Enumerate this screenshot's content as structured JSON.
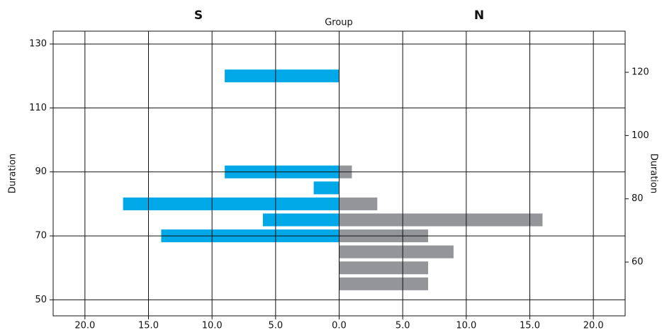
{
  "chart_data": {
    "type": "pyramid",
    "title": "Group",
    "y_label": "Duration",
    "y2_label": "Duration",
    "categories": [
      55,
      60,
      65,
      70,
      75,
      80,
      85,
      90,
      95,
      100,
      105,
      110,
      115,
      120
    ],
    "series": [
      {
        "name": "S",
        "color": "#00a8e8",
        "side": "left",
        "values": [
          0,
          0,
          0,
          14,
          6,
          17,
          2,
          9,
          0,
          0,
          0,
          0,
          0,
          9
        ]
      },
      {
        "name": "N",
        "color": "#939598",
        "side": "right",
        "values": [
          7,
          7,
          9,
          7,
          16,
          3,
          0,
          1,
          0,
          0,
          0,
          0,
          0,
          0
        ]
      }
    ],
    "xlim": [
      0,
      22.5
    ],
    "xticks": [
      {
        "value": 0,
        "label": "0.0"
      },
      {
        "value": 5,
        "label": "5.0"
      },
      {
        "value": 10,
        "label": "10.0"
      },
      {
        "value": 15,
        "label": "15.0"
      },
      {
        "value": 20,
        "label": "20.0"
      }
    ],
    "ylim": [
      45,
      134
    ],
    "yticks": [
      50,
      70,
      90,
      110,
      130
    ],
    "y2lim": [
      43,
      133
    ],
    "y2ticks": [
      60,
      80,
      100,
      120
    ],
    "grid": true
  }
}
